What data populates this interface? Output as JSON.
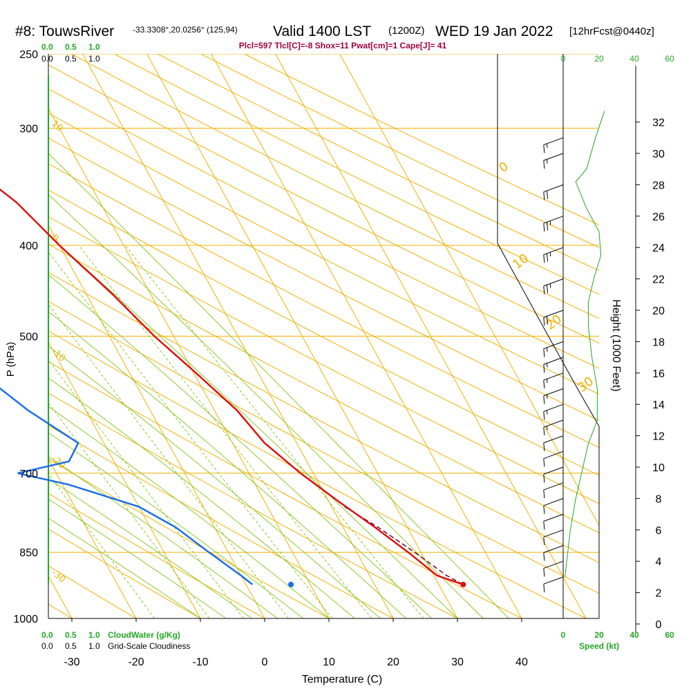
{
  "header": {
    "station": "#8: TouwsRiver",
    "coords": "-33.3308°,20.0256° (125,94)",
    "valid": "Valid 1400 LST",
    "utc": "(1200Z)",
    "date": "WED 19 Jan 2022",
    "forecast": "[12hrFcst@0440z]"
  },
  "indices": "Plcl=597 Tlcl[C]=-8 Shox=11 Pwat[cm]=1 Cape[J]= 41",
  "cloud_scale": {
    "green_ticks": [
      "0.0",
      "0.5",
      "1.0"
    ],
    "black_ticks": [
      "0.0",
      "0.5",
      "1.0"
    ],
    "bottom_green_label": "CloudWater (g/Kg)",
    "bottom_black_label": "Grid-Scale Cloudiness"
  },
  "speed_scale": {
    "ticks_top_black": [
      "0",
      "20",
      "40",
      "60"
    ],
    "ticks_bottom": [
      "0",
      "20",
      "40",
      "60"
    ],
    "label": "Speed (kt)"
  },
  "colors": {
    "temperature": "#dd1111",
    "dewpoint": "#1a6ee8",
    "isotherm": "#f0b000",
    "dry_adiabat": "#f0b000",
    "moist_adiabat": "#8fc82a",
    "mixing_ratio": "#8fc82a",
    "speed_profile": "#22a822",
    "header_red": "#a0003c"
  },
  "chart_data": {
    "type": "skew-t",
    "ylabel": "P (hPa)",
    "xlabel": "Temperature (C)",
    "y2label": "Height (1000 Feet)",
    "xlim": [
      -35,
      50
    ],
    "pressure_ticks": [
      250,
      300,
      400,
      500,
      700,
      850,
      1000
    ],
    "temperature_ticks": [
      -30,
      -20,
      -10,
      0,
      10,
      20,
      30,
      40
    ],
    "height_ticks_kft": [
      0,
      2,
      4,
      6,
      8,
      10,
      12,
      14,
      16,
      18,
      20,
      22,
      24,
      26,
      28,
      30,
      32
    ],
    "dry_adiabat_labels": [
      "30",
      "20",
      "10",
      "0",
      "-10",
      "-20",
      "-30"
    ],
    "isotherm_labels": [
      "0",
      "10",
      "20",
      "30"
    ],
    "mixing_ratio_labels": [
      "1",
      "2",
      "3",
      "5",
      "8",
      "12",
      "20"
    ],
    "series": [
      {
        "name": "Temperature",
        "points": [
          {
            "p": 272,
            "t": -20
          },
          {
            "p": 300,
            "t": -13
          },
          {
            "p": 330,
            "t": -7
          },
          {
            "p": 360,
            "t": -3
          },
          {
            "p": 400,
            "t": 0
          },
          {
            "p": 450,
            "t": 4
          },
          {
            "p": 500,
            "t": 7
          },
          {
            "p": 550,
            "t": 10.5
          },
          {
            "p": 600,
            "t": 13.5
          },
          {
            "p": 650,
            "t": 15
          },
          {
            "p": 700,
            "t": 18
          },
          {
            "p": 750,
            "t": 21.5
          },
          {
            "p": 800,
            "t": 25
          },
          {
            "p": 850,
            "t": 28
          },
          {
            "p": 900,
            "t": 30.5
          },
          {
            "p": 920,
            "t": 33.8
          }
        ]
      },
      {
        "name": "Dewpoint",
        "points": [
          {
            "p": 272,
            "t": -45
          },
          {
            "p": 300,
            "t": -42
          },
          {
            "p": 330,
            "t": -40
          },
          {
            "p": 360,
            "t": -40
          },
          {
            "p": 400,
            "t": -42
          },
          {
            "p": 440,
            "t": -42
          },
          {
            "p": 500,
            "t": -30
          },
          {
            "p": 550,
            "t": -23
          },
          {
            "p": 600,
            "t": -19
          },
          {
            "p": 650,
            "t": -14
          },
          {
            "p": 680,
            "t": -17
          },
          {
            "p": 700,
            "t": -26
          },
          {
            "p": 720,
            "t": -19
          },
          {
            "p": 760,
            "t": -10
          },
          {
            "p": 800,
            "t": -6
          },
          {
            "p": 850,
            "t": -3
          },
          {
            "p": 900,
            "t": 0
          },
          {
            "p": 920,
            "t": 1
          }
        ]
      },
      {
        "name": "Parcel",
        "points": [
          {
            "p": 760,
            "t": 22
          },
          {
            "p": 800,
            "t": 25.5
          },
          {
            "p": 850,
            "t": 29
          },
          {
            "p": 900,
            "t": 32
          },
          {
            "p": 920,
            "t": 33.8
          }
        ]
      },
      {
        "name": "Surface dewpoint",
        "points": [
          {
            "p": 920,
            "t": 7
          }
        ]
      }
    ],
    "wind_barbs_kft": [
      {
        "h": 31,
        "speed": 15
      },
      {
        "h": 30,
        "speed": 15
      },
      {
        "h": 28,
        "speed": 20
      },
      {
        "h": 26,
        "speed": 25
      },
      {
        "h": 24,
        "speed": 25
      },
      {
        "h": 22,
        "speed": 25
      },
      {
        "h": 20,
        "speed": 20
      },
      {
        "h": 18,
        "speed": 15
      },
      {
        "h": 17,
        "speed": 15
      },
      {
        "h": 16,
        "speed": 15
      },
      {
        "h": 15,
        "speed": 15
      },
      {
        "h": 14,
        "speed": 15
      },
      {
        "h": 13,
        "speed": 15
      },
      {
        "h": 12,
        "speed": 10
      },
      {
        "h": 11,
        "speed": 10
      },
      {
        "h": 10,
        "speed": 10
      },
      {
        "h": 9,
        "speed": 10
      },
      {
        "h": 8,
        "speed": 10
      },
      {
        "h": 7,
        "speed": 10
      },
      {
        "h": 6,
        "speed": 10
      },
      {
        "h": 5,
        "speed": 10
      },
      {
        "h": 4,
        "speed": 10
      },
      {
        "h": 3,
        "speed": 10
      }
    ],
    "speed_profile": [
      {
        "h": 32.7,
        "kt": 23
      },
      {
        "h": 31,
        "kt": 18
      },
      {
        "h": 29,
        "kt": 13
      },
      {
        "h": 28.2,
        "kt": 7
      },
      {
        "h": 26.5,
        "kt": 13
      },
      {
        "h": 25,
        "kt": 20
      },
      {
        "h": 23.5,
        "kt": 21
      },
      {
        "h": 22,
        "kt": 17
      },
      {
        "h": 20.5,
        "kt": 14
      },
      {
        "h": 19,
        "kt": 14
      },
      {
        "h": 17,
        "kt": 16
      },
      {
        "h": 15,
        "kt": 19
      },
      {
        "h": 13,
        "kt": 19
      },
      {
        "h": 11.5,
        "kt": 14
      },
      {
        "h": 10,
        "kt": 11
      },
      {
        "h": 8,
        "kt": 7
      },
      {
        "h": 6,
        "kt": 4
      },
      {
        "h": 4,
        "kt": 2
      },
      {
        "h": 3,
        "kt": 1
      }
    ]
  }
}
